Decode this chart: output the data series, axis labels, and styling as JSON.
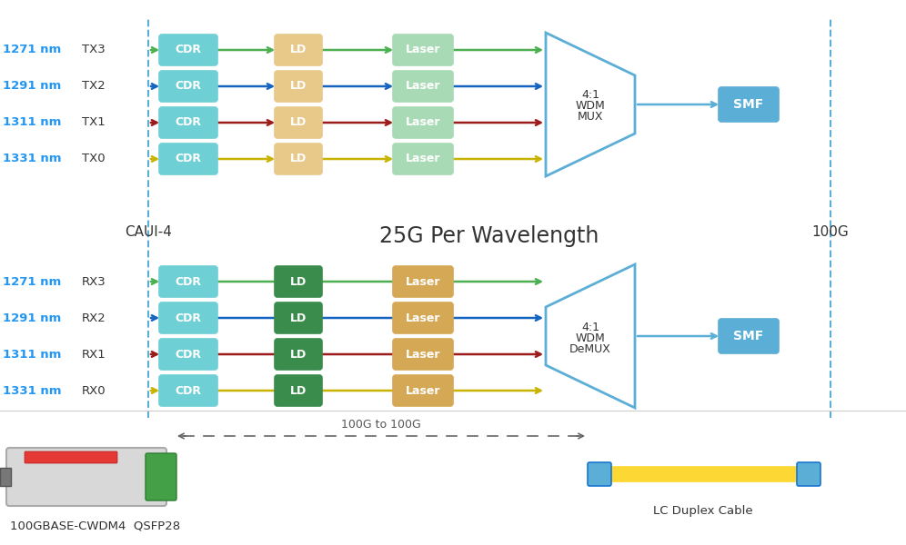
{
  "bg_color": "#ffffff",
  "channel_colors": [
    "#4caf50",
    "#1565c0",
    "#9c1b1b",
    "#c8b400"
  ],
  "tx_labels": [
    "TX3",
    "TX2",
    "TX1",
    "TX0"
  ],
  "rx_labels": [
    "RX3",
    "RX2",
    "RX1",
    "RX0"
  ],
  "nm_labels": [
    "1271 nm",
    "1291 nm",
    "1311 nm",
    "1331 nm"
  ],
  "cdr_tx_color": "#6ecfd4",
  "cdr_rx_color": "#6ecfd4",
  "ld_tx_color": "#e8c98a",
  "ld_rx_color": "#3a8c4c",
  "laser_tx_color": "#a8dbb5",
  "laser_rx_color": "#d4a855",
  "mux_edge_color": "#5baed6",
  "smf_color": "#5baed6",
  "label_color": "#2196f3",
  "dashed_color": "#5baed6",
  "center_label": "25G Per Wavelength",
  "caui_label": "CAUI-4",
  "g100_label": "100G",
  "bottom_label1": "100GBASE-CWDM4  QSFP28",
  "bottom_label2": "LC Duplex Cable",
  "bottom_conn_label": "100G to 100G"
}
